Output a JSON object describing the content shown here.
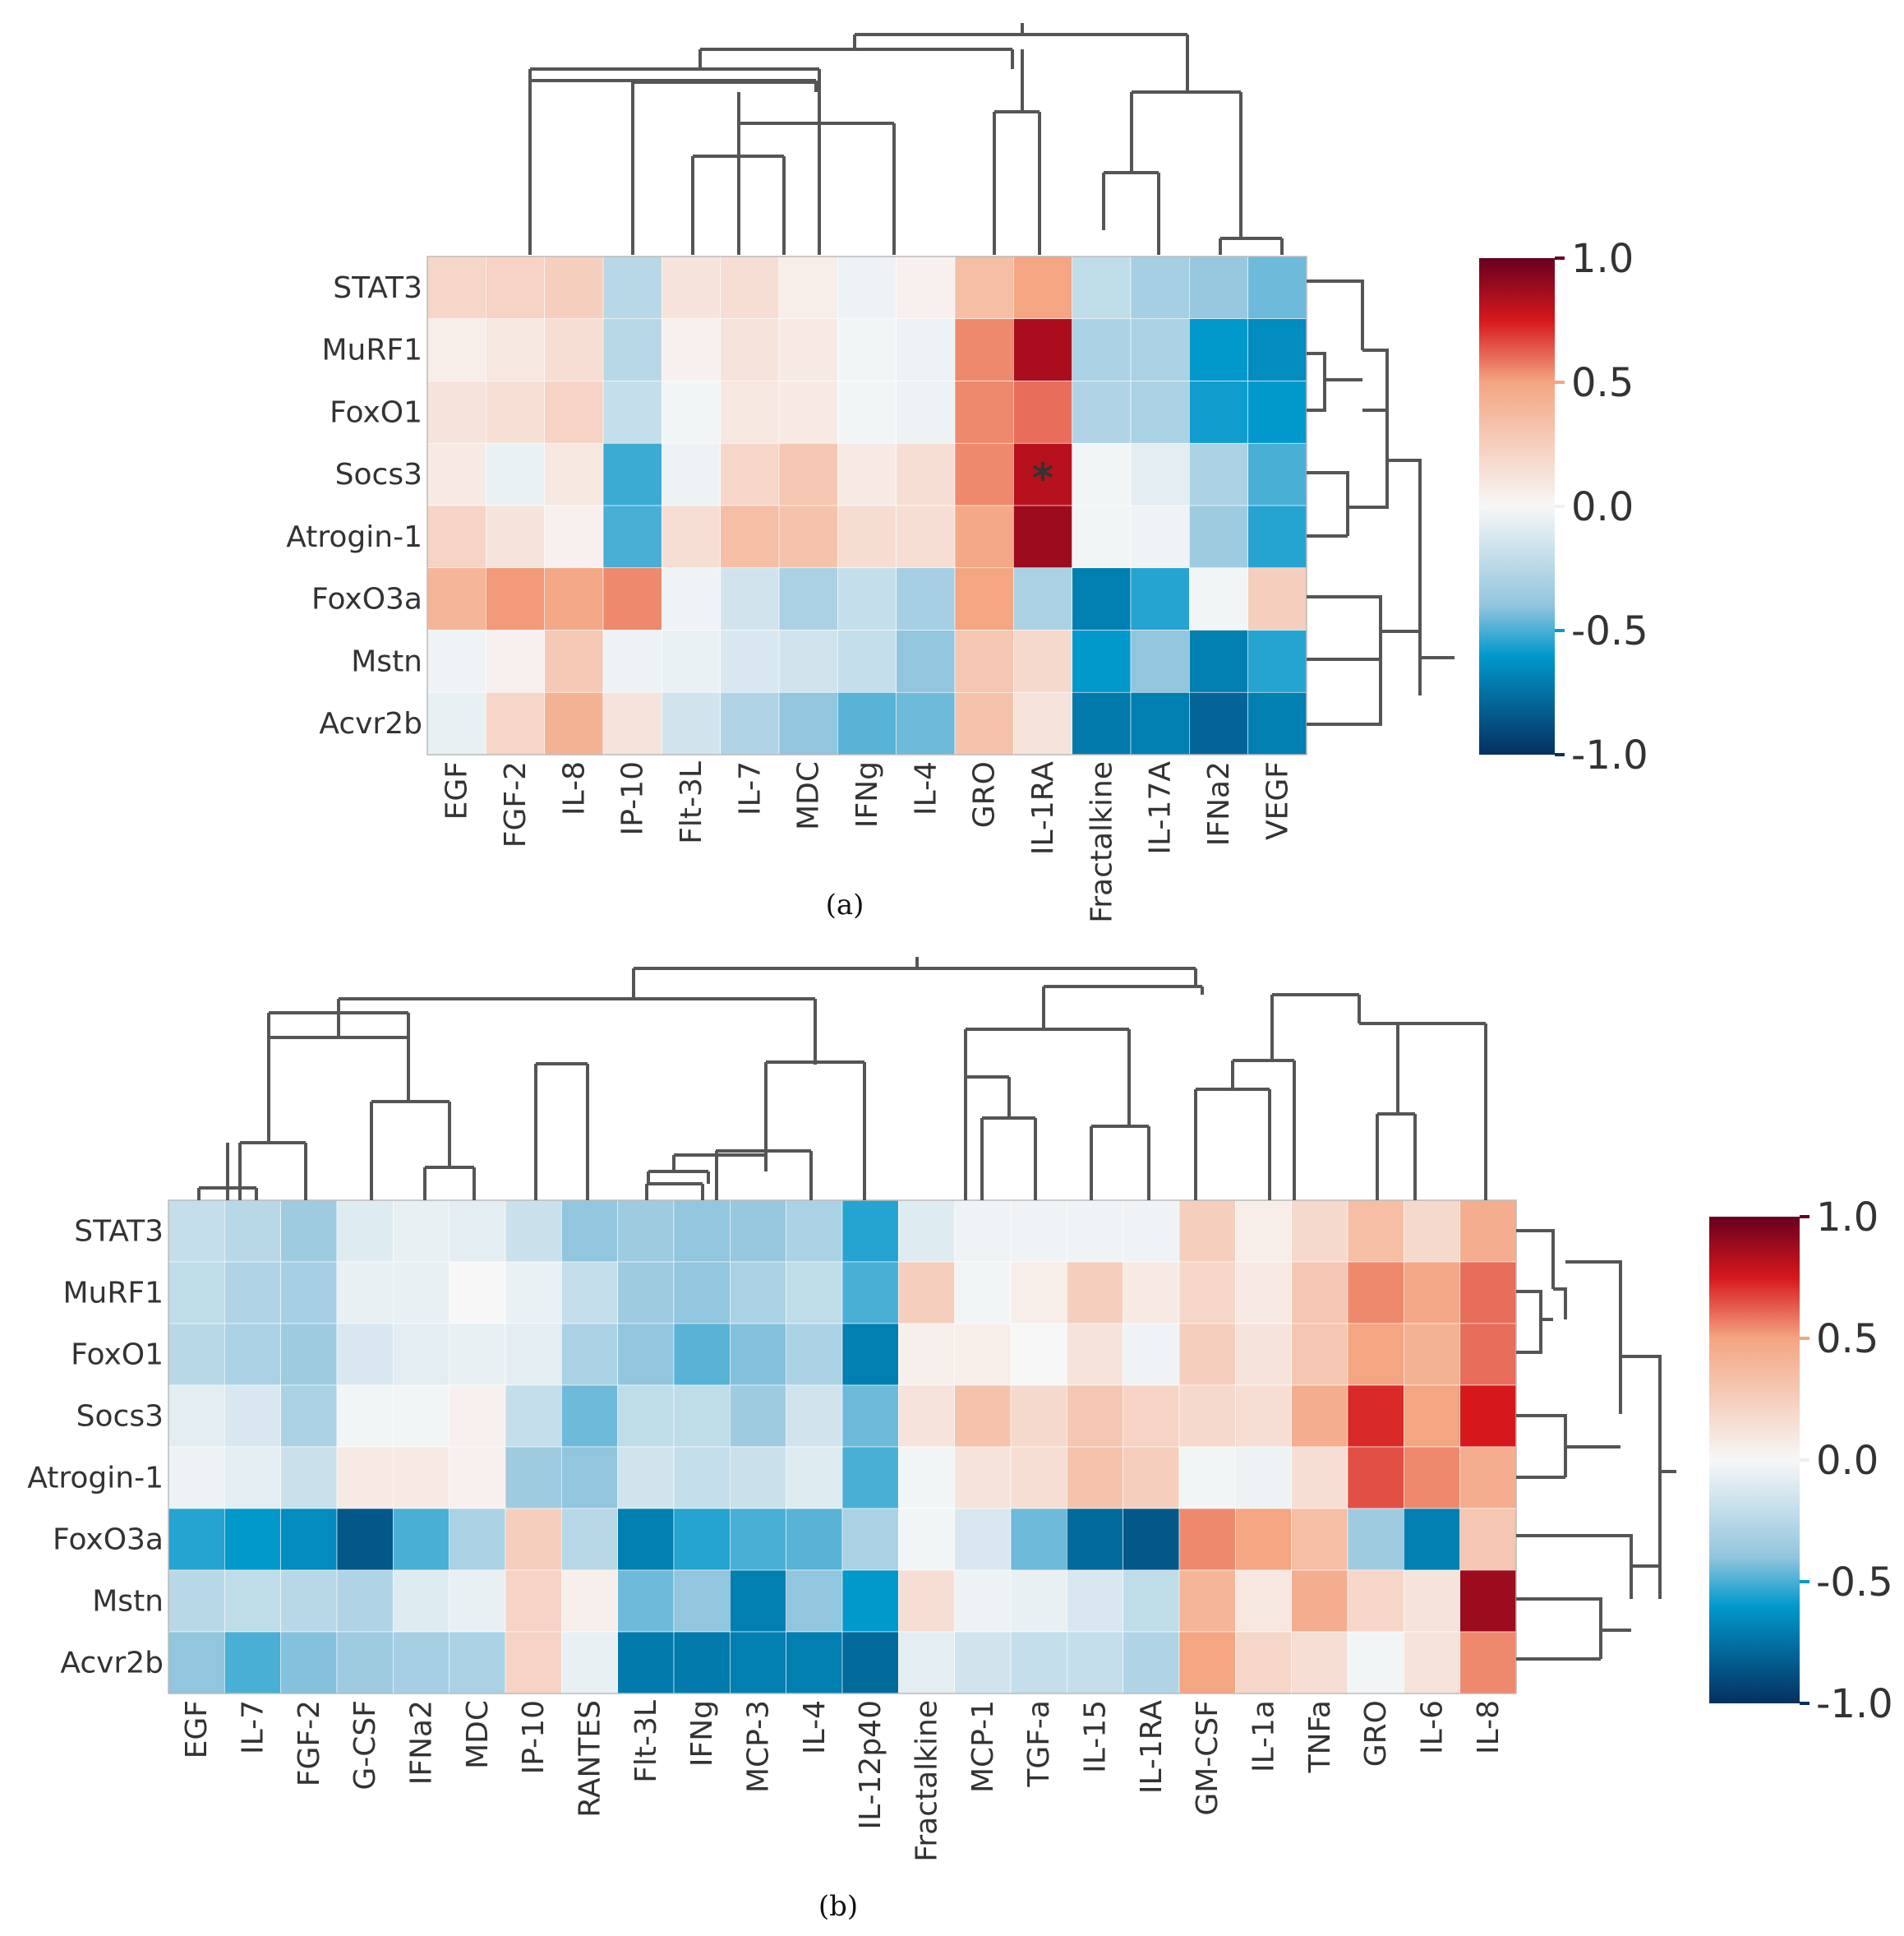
{
  "colorbar": {
    "colors": [
      "#67001f",
      "#d6181d",
      "#f4a582",
      "#f7f7f7",
      "#92c5de",
      "#0199cc",
      "#053061"
    ],
    "ticks": [
      "1.0",
      "0.5",
      "0.0",
      "-0.5",
      "-1.0"
    ]
  },
  "chart_data": [
    {
      "type": "heatmap",
      "caption": "(a)",
      "rows": [
        "STAT3",
        "MuRF1",
        "FoxO1",
        "Socs3",
        "Atrogin-1",
        "FoxO3a",
        "Mstn",
        "Acvr2b"
      ],
      "columns": [
        "EGF",
        "FGF-2",
        "IL-8",
        "IP-10",
        "Flt-3L",
        "IL-7",
        "MDC",
        "IFNg",
        "IL-4",
        "GRO",
        "IL-1RA",
        "Fractalkine",
        "IL-17A",
        "IFNa2",
        "VEGF"
      ],
      "values": [
        [
          0.2,
          0.22,
          0.25,
          -0.25,
          0.12,
          0.15,
          0.06,
          -0.04,
          0.04,
          0.35,
          0.5,
          -0.22,
          -0.32,
          -0.38,
          -0.45
        ],
        [
          0.06,
          0.1,
          0.15,
          -0.25,
          0.04,
          0.12,
          0.08,
          -0.02,
          -0.04,
          0.55,
          0.85,
          -0.3,
          -0.3,
          -0.6,
          -0.65
        ],
        [
          0.12,
          0.14,
          0.22,
          -0.2,
          -0.02,
          0.1,
          0.08,
          -0.02,
          -0.04,
          0.55,
          0.6,
          -0.28,
          -0.3,
          -0.58,
          -0.6
        ],
        [
          0.08,
          -0.05,
          0.1,
          -0.52,
          -0.04,
          0.2,
          0.3,
          0.08,
          0.15,
          0.55,
          0.82,
          -0.02,
          -0.08,
          -0.3,
          -0.5
        ],
        [
          0.22,
          0.12,
          0.04,
          -0.5,
          0.15,
          0.35,
          0.32,
          0.16,
          0.15,
          0.48,
          0.88,
          -0.02,
          -0.03,
          -0.35,
          -0.55
        ],
        [
          0.4,
          0.52,
          0.48,
          0.55,
          -0.03,
          -0.15,
          -0.3,
          -0.2,
          -0.32,
          0.5,
          -0.3,
          -0.7,
          -0.55,
          -0.02,
          0.25
        ],
        [
          -0.03,
          0.04,
          0.28,
          -0.04,
          -0.05,
          -0.12,
          -0.15,
          -0.2,
          -0.4,
          0.3,
          0.18,
          -0.6,
          -0.4,
          -0.7,
          -0.55
        ],
        [
          -0.06,
          0.2,
          0.42,
          0.12,
          -0.15,
          -0.28,
          -0.4,
          -0.48,
          -0.45,
          0.32,
          0.12,
          -0.72,
          -0.7,
          -0.8,
          -0.7
        ]
      ],
      "annotations": [
        {
          "row": "Socs3",
          "column": "IL-1RA",
          "text": "*"
        }
      ],
      "colorbar_range": [
        -1.0,
        1.0
      ]
    },
    {
      "type": "heatmap",
      "caption": "(b)",
      "rows": [
        "STAT3",
        "MuRF1",
        "FoxO1",
        "Socs3",
        "Atrogin-1",
        "FoxO3a",
        "Mstn",
        "Acvr2b"
      ],
      "columns": [
        "EGF",
        "IL-7",
        "FGF-2",
        "G-CSF",
        "IFNa2",
        "MDC",
        "IP-10",
        "RANTES",
        "Flt-3L",
        "IFNg",
        "MCP-3",
        "IL-4",
        "IL-12p40",
        "Fractalkine",
        "MCP-1",
        "TGF-a",
        "IL-15",
        "IL-1RA",
        "GM-CSF",
        "IL-1a",
        "TNFa",
        "GRO",
        "IL-6",
        "IL-8"
      ],
      "values": [
        [
          -0.2,
          -0.25,
          -0.35,
          -0.1,
          -0.06,
          -0.08,
          -0.18,
          -0.4,
          -0.35,
          -0.4,
          -0.38,
          -0.3,
          -0.55,
          -0.1,
          -0.03,
          -0.03,
          -0.03,
          -0.03,
          0.25,
          0.06,
          0.18,
          0.35,
          0.18,
          0.45
        ],
        [
          -0.22,
          -0.28,
          -0.32,
          -0.06,
          -0.06,
          0.0,
          -0.05,
          -0.2,
          -0.35,
          -0.4,
          -0.3,
          -0.22,
          -0.5,
          0.25,
          -0.02,
          0.06,
          0.25,
          0.08,
          0.2,
          0.08,
          0.3,
          0.55,
          0.48,
          0.6
        ],
        [
          -0.25,
          -0.3,
          -0.35,
          -0.12,
          -0.08,
          -0.06,
          -0.08,
          -0.3,
          -0.4,
          -0.48,
          -0.42,
          -0.3,
          -0.7,
          0.05,
          0.06,
          0.0,
          0.12,
          -0.03,
          0.25,
          0.12,
          0.3,
          0.5,
          0.42,
          0.6
        ],
        [
          -0.08,
          -0.12,
          -0.3,
          -0.02,
          -0.02,
          0.04,
          -0.2,
          -0.45,
          -0.22,
          -0.22,
          -0.35,
          -0.15,
          -0.45,
          0.12,
          0.32,
          0.18,
          0.3,
          0.22,
          0.18,
          0.15,
          0.45,
          0.72,
          0.5,
          0.75
        ],
        [
          -0.04,
          -0.08,
          -0.18,
          0.08,
          0.08,
          0.04,
          -0.35,
          -0.4,
          -0.15,
          -0.2,
          -0.18,
          -0.1,
          -0.5,
          -0.02,
          0.12,
          0.15,
          0.32,
          0.25,
          -0.02,
          -0.04,
          0.15,
          0.65,
          0.55,
          0.45
        ],
        [
          -0.55,
          -0.6,
          -0.65,
          -0.85,
          -0.5,
          -0.3,
          0.25,
          -0.25,
          -0.7,
          -0.55,
          -0.5,
          -0.48,
          -0.3,
          -0.02,
          -0.12,
          -0.45,
          -0.78,
          -0.85,
          0.55,
          0.5,
          0.35,
          -0.35,
          -0.7,
          0.3
        ],
        [
          -0.25,
          -0.22,
          -0.25,
          -0.28,
          -0.1,
          -0.06,
          0.22,
          0.05,
          -0.45,
          -0.4,
          -0.7,
          -0.4,
          -0.6,
          0.15,
          -0.04,
          -0.06,
          -0.12,
          -0.22,
          0.4,
          0.1,
          0.45,
          0.2,
          0.12,
          0.88
        ],
        [
          -0.4,
          -0.5,
          -0.42,
          -0.35,
          -0.32,
          -0.3,
          0.22,
          -0.06,
          -0.72,
          -0.72,
          -0.7,
          -0.7,
          -0.78,
          -0.08,
          -0.15,
          -0.2,
          -0.2,
          -0.28,
          0.5,
          0.2,
          0.15,
          -0.02,
          0.12,
          0.55
        ]
      ],
      "colorbar_range": [
        -1.0,
        1.0
      ]
    }
  ]
}
